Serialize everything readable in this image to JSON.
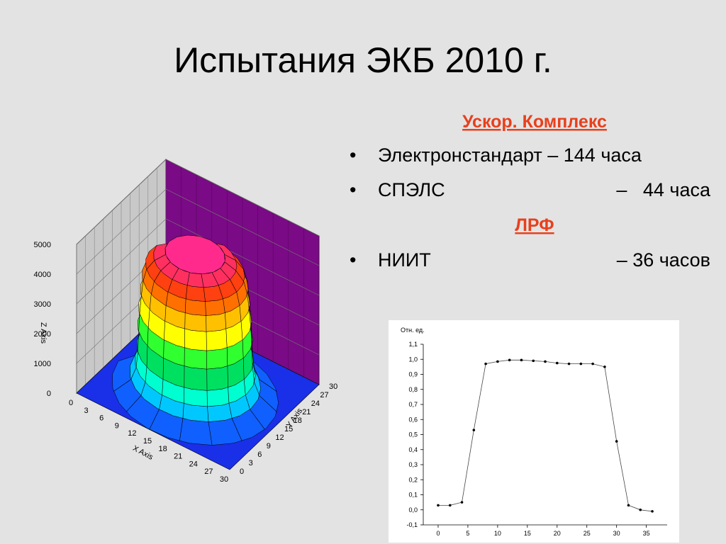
{
  "header": {
    "title": "Испытания ЭКБ 2010 г."
  },
  "sections": [
    {
      "heading": "Ускор. Комплекс",
      "items": [
        {
          "text": "Электронстандарт – 144 часа"
        },
        {
          "text": "СПЭЛС",
          "right": "–   44 часа"
        }
      ]
    },
    {
      "heading": "ЛРФ",
      "items": [
        {
          "text": "НИИТ",
          "right": "– 36 часов"
        }
      ]
    }
  ],
  "chart_data": [
    {
      "type": "surface3d",
      "x_label": "X Axis",
      "y_label": "Y Axis",
      "z_label": "Z Axis",
      "xlim": [
        0,
        30
      ],
      "ylim": [
        0,
        30
      ],
      "zlim": [
        0,
        5000
      ],
      "xticks": [
        0,
        3,
        6,
        9,
        12,
        15,
        18,
        21,
        24,
        27,
        30
      ],
      "yticks": [
        0,
        3,
        6,
        9,
        12,
        15,
        18,
        21,
        24,
        27,
        30
      ],
      "zticks": [
        0,
        1000,
        2000,
        3000,
        4000,
        5000
      ]
    },
    {
      "type": "line",
      "y_label": "Отн. ед.",
      "color": "#000000",
      "x": [
        0,
        2,
        4,
        6,
        8,
        10,
        12,
        14,
        16,
        18,
        20,
        22,
        24,
        26,
        28,
        30,
        32,
        34,
        36
      ],
      "values": [
        0.03,
        0.03,
        0.05,
        0.53,
        0.97,
        0.985,
        0.995,
        0.995,
        0.99,
        0.985,
        0.975,
        0.97,
        0.97,
        0.97,
        0.95,
        0.455,
        0.03,
        0.0,
        -0.01
      ],
      "xlim": [
        -2.5,
        38.5
      ],
      "ylim": [
        -0.1,
        1.1
      ],
      "xticks": [
        0,
        5,
        10,
        15,
        20,
        25,
        30,
        35
      ],
      "yticks": [
        {
          "value": -0.1,
          "label": "-0,1"
        },
        {
          "value": 0,
          "label": "0,0"
        },
        {
          "value": 0.1,
          "label": "0,1"
        },
        {
          "value": 0.2,
          "label": "0,2"
        },
        {
          "value": 0.3,
          "label": "0,3"
        },
        {
          "value": 0.4,
          "label": "0,4"
        },
        {
          "value": 0.5,
          "label": "0,5"
        },
        {
          "value": 0.6,
          "label": "0,6"
        },
        {
          "value": 0.7,
          "label": "0,7"
        },
        {
          "value": 0.8,
          "label": "0,8"
        },
        {
          "value": 0.9,
          "label": "0,9"
        },
        {
          "value": 1.0,
          "label": "1,0"
        },
        {
          "value": 1.1,
          "label": "1,1"
        }
      ]
    }
  ]
}
